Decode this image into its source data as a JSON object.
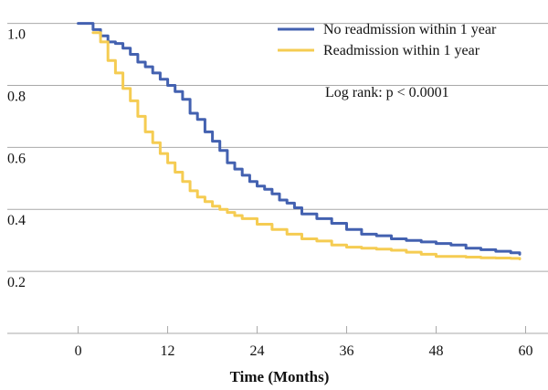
{
  "chart_data": {
    "type": "line",
    "title": "",
    "xlabel": "Time (Months)",
    "ylabel": "",
    "xlim": [
      -9.5,
      63
    ],
    "ylim": [
      0.0,
      1.04
    ],
    "xticks": [
      0,
      12,
      24,
      36,
      48,
      60
    ],
    "xtick_labels": [
      "0",
      "12",
      "24",
      "36",
      "48",
      "60"
    ],
    "yticks": [
      1.0,
      0.8,
      0.6,
      0.4,
      0.2
    ],
    "ytick_labels": [
      "1.0",
      "0.8",
      "0.6",
      "0.4",
      "0.2"
    ],
    "grid": "horizontal",
    "legend_position": "top-right",
    "annotation": "Log rank: p < 0.0001",
    "series": [
      {
        "name": "No readmission within 1 year",
        "color": "#4361b0",
        "x": [
          0,
          1.2,
          2,
          3,
          4,
          5,
          6,
          7,
          8,
          9,
          10,
          11,
          12,
          13,
          14,
          15,
          16,
          17,
          18,
          19,
          20,
          21,
          22,
          23,
          24,
          25,
          26,
          27,
          28,
          29,
          30,
          32,
          34,
          36,
          38,
          40,
          42,
          44,
          46,
          48,
          50,
          52,
          54,
          56,
          58,
          59.2
        ],
        "y": [
          1.0,
          1.0,
          0.98,
          0.96,
          0.94,
          0.935,
          0.92,
          0.9,
          0.875,
          0.86,
          0.84,
          0.82,
          0.8,
          0.78,
          0.755,
          0.71,
          0.69,
          0.65,
          0.62,
          0.59,
          0.55,
          0.53,
          0.51,
          0.49,
          0.475,
          0.465,
          0.45,
          0.43,
          0.42,
          0.405,
          0.385,
          0.37,
          0.355,
          0.335,
          0.32,
          0.315,
          0.305,
          0.3,
          0.295,
          0.29,
          0.285,
          0.275,
          0.27,
          0.265,
          0.26,
          0.255
        ]
      },
      {
        "name": "Readmission within 1 year",
        "color": "#f5cc52",
        "x": [
          2,
          3,
          4,
          5,
          6,
          7,
          8,
          9,
          10,
          11,
          12,
          13,
          14,
          15,
          16,
          17,
          18,
          19,
          20,
          21,
          22,
          24,
          26,
          28,
          30,
          32,
          34,
          36,
          38,
          40,
          42,
          44,
          46,
          48,
          50,
          52,
          54,
          56,
          58,
          59.2
        ],
        "y": [
          0.97,
          0.94,
          0.88,
          0.84,
          0.79,
          0.75,
          0.7,
          0.65,
          0.615,
          0.58,
          0.55,
          0.52,
          0.49,
          0.46,
          0.44,
          0.425,
          0.41,
          0.4,
          0.39,
          0.38,
          0.37,
          0.352,
          0.335,
          0.32,
          0.305,
          0.298,
          0.285,
          0.278,
          0.275,
          0.272,
          0.268,
          0.262,
          0.255,
          0.248,
          0.248,
          0.246,
          0.244,
          0.243,
          0.242,
          0.24
        ]
      }
    ]
  }
}
